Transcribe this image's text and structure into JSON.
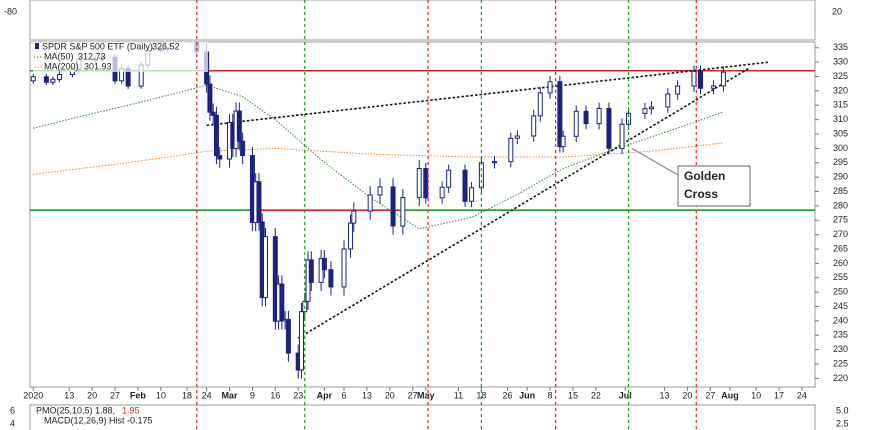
{
  "chart_data": {
    "type": "candlestick",
    "title": "SPDR S&P 500 ETF (Daily)",
    "last_price": 326.52,
    "color": "#1a237e",
    "x": [
      1,
      5,
      7,
      9,
      13,
      15,
      20,
      22,
      26,
      28,
      30,
      34,
      36,
      40,
      42,
      44,
      49,
      51,
      54,
      55,
      56,
      57,
      58,
      61,
      62,
      63,
      64,
      65,
      68,
      69,
      70,
      71,
      72,
      75,
      76,
      77,
      78,
      79,
      82,
      83,
      84,
      85,
      86,
      89,
      90,
      92,
      96,
      98,
      99,
      104,
      107,
      111,
      114,
      119,
      121,
      126,
      128,
      133,
      135,
      138,
      142,
      147,
      149,
      154,
      156,
      159,
      162,
      163,
      167,
      170,
      174,
      177,
      181,
      183,
      188,
      190,
      195,
      198,
      203,
      205,
      209,
      212
    ],
    "open": [
      323.5,
      324.9,
      323.0,
      324.0,
      325.7,
      327.5,
      331.0,
      331.0,
      331.7,
      323.5,
      327.7,
      321.7,
      329.0,
      334.0,
      334.7,
      337.4,
      337.6,
      338.3,
      333.5,
      322.4,
      312.6,
      311.5,
      297.5,
      296.3,
      309.0,
      300.0,
      313.0,
      302.5,
      297.5,
      274.2,
      288.4,
      274.4,
      248.1,
      269.3,
      239.9,
      252.8,
      240.0,
      240.5,
      228.8,
      222.9,
      243.2,
      246.8,
      261.2,
      253.4,
      261.7,
      257.8,
      251.8,
      265.0,
      274.0,
      278.2,
      283.8,
      286.6,
      273.0,
      282.9,
      293.0,
      282.8,
      286.5,
      292.4,
      281.6,
      286.3,
      295.0,
      295.4,
      303.5,
      304.3,
      311.3,
      319.3,
      323.2,
      300.6,
      304.2,
      312.9,
      308.6,
      313.9,
      300.0,
      308.4,
      312.2,
      313.8,
      314.4,
      318.9,
      321.7,
      326.8,
      320.9,
      321.7
    ],
    "high": [
      325.9,
      325.9,
      325,
      326.7,
      328.5,
      332,
      332,
      332.7,
      332.7,
      328.7,
      328.7,
      330,
      335,
      335.7,
      338.4,
      338.6,
      339.3,
      339.3,
      336.5,
      325.4,
      315.6,
      314.5,
      300.5,
      312,
      312,
      316,
      316,
      305.5,
      300.5,
      291.4,
      291.4,
      277.4,
      272.3,
      272.3,
      255.8,
      255.8,
      243.5,
      243.5,
      231.8,
      246.2,
      249.8,
      264.2,
      264.2,
      264.7,
      264.7,
      260.8,
      268,
      277,
      281.2,
      286.8,
      289.6,
      289.6,
      285.9,
      296,
      295,
      288.5,
      294.4,
      294.4,
      288.3,
      297,
      297.4,
      305.5,
      306.3,
      313.3,
      321.3,
      325.2,
      325.2,
      306.2,
      314.9,
      314.9,
      315.9,
      315.9,
      310.4,
      314.2,
      315.8,
      316.4,
      320.9,
      323.7,
      328.8,
      328.8,
      323.7,
      328.5
    ],
    "low": [
      322.5,
      322,
      322,
      323,
      324.7,
      326.5,
      330,
      330,
      322.5,
      322.5,
      320.7,
      320.7,
      328,
      333,
      333.7,
      336.4,
      336.6,
      332.5,
      319.4,
      309.6,
      308.5,
      294.5,
      293.3,
      293.3,
      297,
      297,
      299.5,
      294.5,
      271.2,
      271.2,
      271.4,
      245.1,
      245.1,
      236.9,
      236.9,
      237,
      237,
      225.8,
      219.9,
      219.9,
      240.2,
      243.8,
      250.4,
      250.4,
      254.8,
      248.8,
      248.8,
      262,
      271,
      275.2,
      280.8,
      270,
      270,
      279.9,
      280.8,
      280.8,
      284.5,
      279.6,
      279.6,
      284.3,
      293,
      293.4,
      301.5,
      302.3,
      309.3,
      317.3,
      298.6,
      298.6,
      302.2,
      306.6,
      306.6,
      298,
      298,
      306.4,
      310.2,
      311.8,
      312.4,
      316.9,
      319.7,
      318.9,
      318.9,
      319.7
    ],
    "close": [
      324.9,
      323.0,
      324.0,
      325.7,
      327.5,
      331.0,
      331.0,
      331.7,
      323.5,
      327.7,
      321.7,
      329.0,
      334.0,
      334.7,
      337.4,
      337.6,
      338.3,
      333.5,
      322.4,
      312.6,
      311.5,
      297.5,
      296.3,
      309.0,
      300.0,
      313.0,
      302.5,
      297.5,
      274.2,
      288.4,
      274.4,
      248.1,
      269.3,
      239.9,
      252.8,
      240.0,
      240.5,
      228.8,
      222.9,
      243.2,
      246.8,
      261.2,
      253.4,
      261.7,
      257.8,
      251.8,
      265.0,
      274.0,
      278.2,
      283.8,
      286.6,
      273.0,
      282.9,
      293.0,
      282.8,
      286.5,
      292.4,
      281.6,
      286.3,
      295.0,
      295.4,
      303.5,
      304.3,
      311.3,
      319.3,
      323.2,
      300.6,
      304.2,
      312.9,
      308.6,
      313.9,
      300.0,
      308.4,
      312.2,
      313.8,
      314.4,
      318.9,
      321.7,
      326.8,
      320.9,
      321.7,
      326.5
    ],
    "moving_averages": [
      {
        "name": "MA(50)",
        "last": 312.73,
        "color": "#2e8b2e",
        "x": [
          1,
          15,
          30,
          44,
          54,
          65,
          75,
          89,
          104,
          119,
          135,
          149,
          163,
          177,
          190,
          203,
          212
        ],
        "values": [
          307,
          311,
          315,
          319,
          322,
          318,
          310,
          296,
          283,
          272,
          276,
          284,
          293,
          299,
          304,
          309,
          312.73
        ]
      },
      {
        "name": "MA(200)",
        "last": 301.93,
        "color": "#e8842c",
        "x": [
          1,
          30,
          54,
          75,
          104,
          135,
          163,
          190,
          212
        ],
        "values": [
          291,
          295,
          299,
          300,
          298,
          297,
          297,
          299,
          301.93
        ]
      }
    ],
    "levels": [
      {
        "value": 327,
        "segments": [
          {
            "from": 0,
            "to": 51,
            "color": "#1f9e1f"
          },
          {
            "from": 51,
            "to": 240,
            "color": "#e02020"
          }
        ]
      },
      {
        "value": 278.5,
        "segments": [
          {
            "from": 0,
            "to": 67,
            "color": "#1f9e1f"
          },
          {
            "from": 67,
            "to": 113,
            "color": "#e02020"
          },
          {
            "from": 113,
            "to": 240,
            "color": "#1f9e1f"
          }
        ]
      }
    ],
    "trendlines": [
      {
        "x": [
          54,
          226
        ],
        "values": [
          308,
          330
        ]
      },
      {
        "x": [
          82,
          220
        ],
        "values": [
          234,
          328
        ]
      }
    ],
    "vlines": [
      {
        "x": 51,
        "color": "#e02020"
      },
      {
        "x": 84,
        "color": "#1f9e1f"
      },
      {
        "x": 121.7,
        "color": "#e02020"
      },
      {
        "x": 138,
        "color": "#1f9e1f"
      },
      {
        "x": 160.7,
        "color": "#e02020"
      },
      {
        "x": 183,
        "color": "#1f9e1f"
      },
      {
        "x": 203.7,
        "color": "#e02020"
      }
    ],
    "annotation": {
      "lines": [
        "Golden",
        "Cross"
      ],
      "x": 184,
      "value": 300
    },
    "xlim": [
      0,
      240
    ],
    "ylim": [
      217,
      337
    ],
    "yticks": [
      220,
      225,
      230,
      235,
      240,
      245,
      250,
      255,
      260,
      265,
      270,
      275,
      280,
      285,
      290,
      295,
      300,
      305,
      310,
      315,
      320,
      325,
      330,
      335
    ],
    "xticks": [
      {
        "value": 1,
        "label": "2020"
      },
      {
        "value": 12,
        "label": "13"
      },
      {
        "value": 19,
        "label": "20"
      },
      {
        "value": 26,
        "label": "27"
      },
      {
        "value": 33,
        "label": "Feb"
      },
      {
        "value": 40,
        "label": "10"
      },
      {
        "value": 48,
        "label": "18"
      },
      {
        "value": 54,
        "label": "24"
      },
      {
        "value": 61,
        "label": "Mar"
      },
      {
        "value": 68,
        "label": "9"
      },
      {
        "value": 75,
        "label": "16"
      },
      {
        "value": 82,
        "label": "23"
      },
      {
        "value": 90,
        "label": "Apr"
      },
      {
        "value": 96,
        "label": "6"
      },
      {
        "value": 103,
        "label": "13"
      },
      {
        "value": 110,
        "label": "20"
      },
      {
        "value": 117,
        "label": "27"
      },
      {
        "value": 121,
        "label": "May"
      },
      {
        "value": 131,
        "label": "11"
      },
      {
        "value": 138,
        "label": "18"
      },
      {
        "value": 146,
        "label": "26"
      },
      {
        "value": 152,
        "label": "Jun"
      },
      {
        "value": 159,
        "label": "8"
      },
      {
        "value": 166,
        "label": "15"
      },
      {
        "value": 173,
        "label": "22"
      },
      {
        "value": 182,
        "label": "Jul"
      },
      {
        "value": 194,
        "label": "13"
      },
      {
        "value": 201,
        "label": "20"
      },
      {
        "value": 208,
        "label": "27"
      },
      {
        "value": 214,
        "label": "Aug"
      },
      {
        "value": 222,
        "label": "10"
      },
      {
        "value": 229,
        "label": "17"
      },
      {
        "value": 236,
        "label": "24"
      }
    ],
    "top_panel": {
      "left_label": "-80",
      "right_label": "20"
    },
    "bottom_panel": {
      "pmo_label": "PMO(25,10,5) 1.88,",
      "pmo_signal": "1.95",
      "macd_label": "MACD(12,26,9) Hist -0.175",
      "left_labels": [
        "6",
        "4"
      ],
      "right_labels": [
        "5.0",
        "2.5"
      ]
    }
  }
}
